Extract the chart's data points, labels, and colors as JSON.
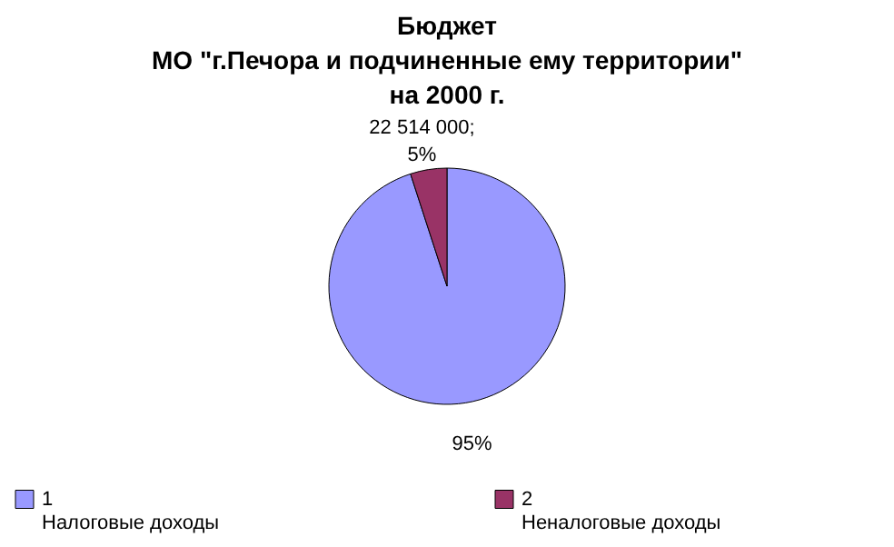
{
  "chart_data": {
    "type": "pie",
    "title": "Бюджет\nМО \"г.Печора и подчиненные ему территории\"\nна 2000 г.",
    "categories": [
      "1\nНалоговые доходы",
      "2\nНеналоговые доходы"
    ],
    "values": [
      95,
      5
    ],
    "colors": [
      "#9999ff",
      "#993366"
    ],
    "value_labels": [
      "95%",
      "22 514 000;\n5%"
    ],
    "legend": "bottom"
  }
}
